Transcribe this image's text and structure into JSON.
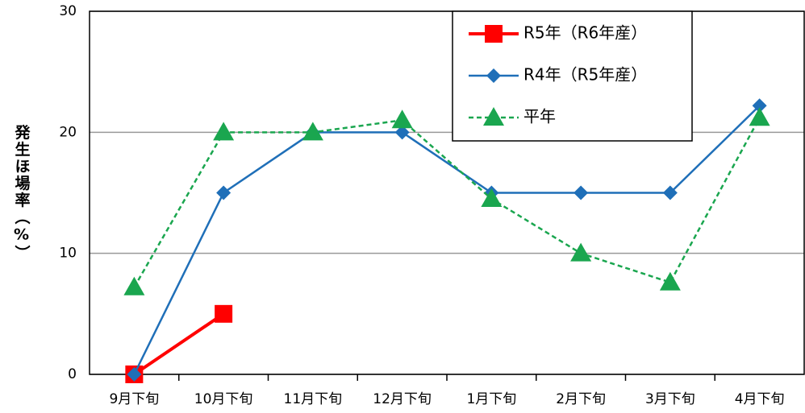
{
  "chart_data": {
    "type": "line",
    "ylabel": "発生ほ場率（%）",
    "categories": [
      "9月下旬",
      "10月下旬",
      "11月下旬",
      "12月下旬",
      "1月下旬",
      "2月下旬",
      "3月下旬",
      "4月下旬"
    ],
    "series": [
      {
        "name": "R5年（R6年産）",
        "color": "#ff0000",
        "marker": "square",
        "linestyle": "solid",
        "values": [
          0,
          5,
          null,
          null,
          null,
          null,
          null,
          null
        ]
      },
      {
        "name": "R4年（R5年産）",
        "color": "#1f6fb8",
        "marker": "diamond",
        "linestyle": "solid",
        "values": [
          0,
          15,
          20,
          20,
          15,
          15,
          15,
          22.2
        ]
      },
      {
        "name": "平年",
        "color": "#1aa64f",
        "marker": "triangle",
        "linestyle": "dashed",
        "values": [
          7.2,
          20,
          20,
          21,
          14.5,
          10,
          7.6,
          21.2
        ]
      }
    ],
    "ylim": [
      0,
      30
    ],
    "yticks": [
      0,
      10,
      20,
      30
    ],
    "grid": true,
    "legend": "upper right"
  }
}
